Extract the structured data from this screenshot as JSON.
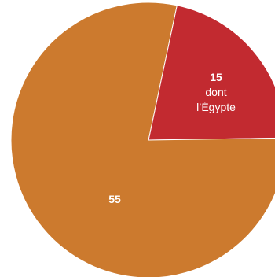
{
  "chart_data": {
    "type": "pie",
    "slices": [
      {
        "label_lines": [
          "15",
          "dont",
          "l’Égypte"
        ],
        "value": 15,
        "color": "#c22a30"
      },
      {
        "label_lines": [
          "55"
        ],
        "value": 55,
        "color": "#cc7a2e"
      }
    ]
  }
}
